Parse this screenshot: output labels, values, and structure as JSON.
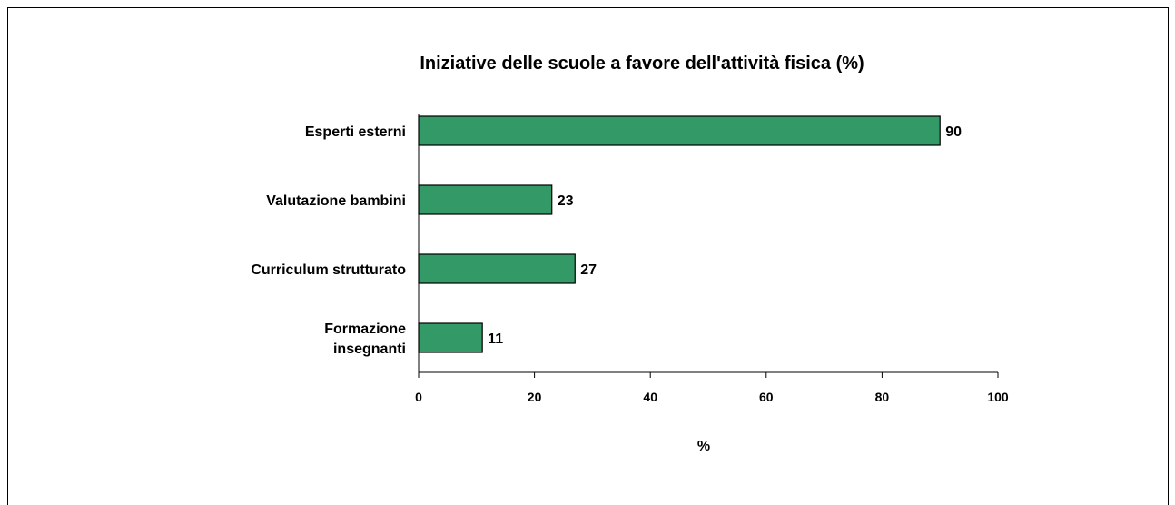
{
  "chart_data": {
    "type": "bar",
    "orientation": "horizontal",
    "title": "Iniziative delle scuole a favore dell'attività fisica (%)",
    "xlabel": "%",
    "ylabel": "",
    "categories": [
      [
        "Esperti esterni"
      ],
      [
        "Valutazione bambini"
      ],
      [
        "Curriculum strutturato"
      ],
      [
        "Formazione",
        "insegnanti"
      ]
    ],
    "values": [
      90,
      23,
      27,
      11
    ],
    "data_labels": [
      "90",
      "23",
      "27",
      "11"
    ],
    "xlim": [
      0,
      100
    ],
    "xticks": [
      0,
      20,
      40,
      60,
      80,
      100
    ],
    "grid": false,
    "legend": "none",
    "colors": {
      "bar_fill": "#339966",
      "bar_stroke": "#000000"
    }
  }
}
